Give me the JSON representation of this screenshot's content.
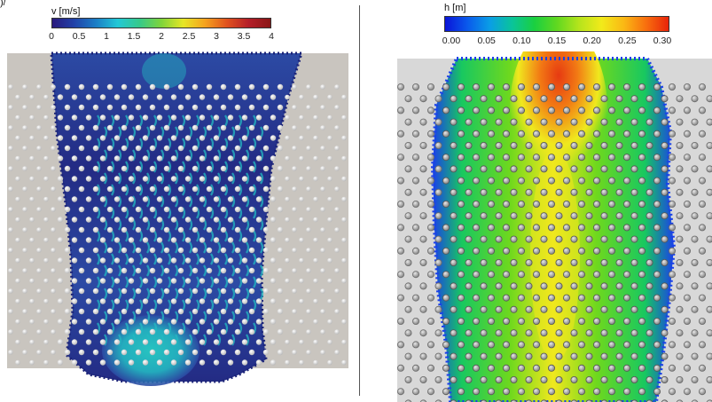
{
  "figure": {
    "corner_mark": ")/",
    "left_panel": {
      "colorbar": {
        "title": "v [m/s]",
        "ticks": [
          "0",
          "0.5",
          "1",
          "1.5",
          "2",
          "2.5",
          "3",
          "3.5",
          "4"
        ],
        "colors": [
          "#2a1a7d",
          "#2242a8",
          "#1c7ec6",
          "#22c8d6",
          "#36c98a",
          "#7fd43a",
          "#e6e626",
          "#f5a21e",
          "#e0521e",
          "#b41e28",
          "#8a1616"
        ]
      },
      "field_colors": {
        "background": "#c9c5bf",
        "flow_dark": "#232b84",
        "flow_mid": "#2c4aa4",
        "flow_fast": "#23b9c2",
        "jet": "#27d3c6"
      },
      "marker_color": "#f4f4f4"
    },
    "right_panel": {
      "colorbar": {
        "title": "h [m]",
        "ticks": [
          "0.00",
          "0.05",
          "0.10",
          "0.15",
          "0.20",
          "0.25",
          "0.30"
        ],
        "colors": [
          "#0a14d8",
          "#0a5aec",
          "#0a9ee6",
          "#0ac49a",
          "#1ad040",
          "#60d820",
          "#b6e41c",
          "#f2ea1a",
          "#fab814",
          "#f86e0e",
          "#e8240a"
        ]
      },
      "field_colors": {
        "background": "#d8d8d8",
        "edge": "#1a40e8",
        "shallow": "#18c860",
        "mid": "#6ed81e",
        "deep": "#f0e81e",
        "peak": "#f27a14",
        "top": "#e63a12"
      },
      "marker_color": "#9a9a9a"
    }
  }
}
